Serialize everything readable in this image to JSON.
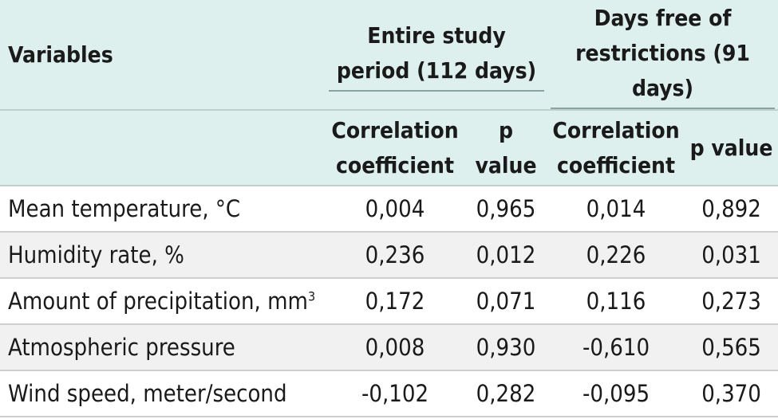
{
  "header": {
    "variables": "Variables",
    "group1": "Entire study period (112 days)",
    "group2": "Days free of restrictions (91 days)",
    "sub_corr_1": "Correlation coefficient",
    "sub_p_1": "p value",
    "sub_corr_2": "Correlation coefficient",
    "sub_p_2": "p value"
  },
  "rows": [
    {
      "label": "Mean temperature, °C",
      "c1": "0,004",
      "p1": "0,965",
      "c2": "0,014",
      "p2": "0,892"
    },
    {
      "label": "Humidity rate, %",
      "c1": "0,236",
      "p1": "0,012",
      "c2": "0,226",
      "p2": "0,031"
    },
    {
      "label": "Amount of precipitation, mm",
      "label_sup": "3",
      "c1": "0,172",
      "p1": "0,071",
      "c2": "0,116",
      "p2": "0,273"
    },
    {
      "label": "Atmospheric pressure",
      "c1": "0,008",
      "p1": "0,930",
      "c2": "-0,610",
      "p2": "0,565"
    },
    {
      "label": "Wind speed, meter/second",
      "c1": "-0,102",
      "p1": "0,282",
      "c2": "-0,095",
      "p2": "0,370"
    }
  ]
}
